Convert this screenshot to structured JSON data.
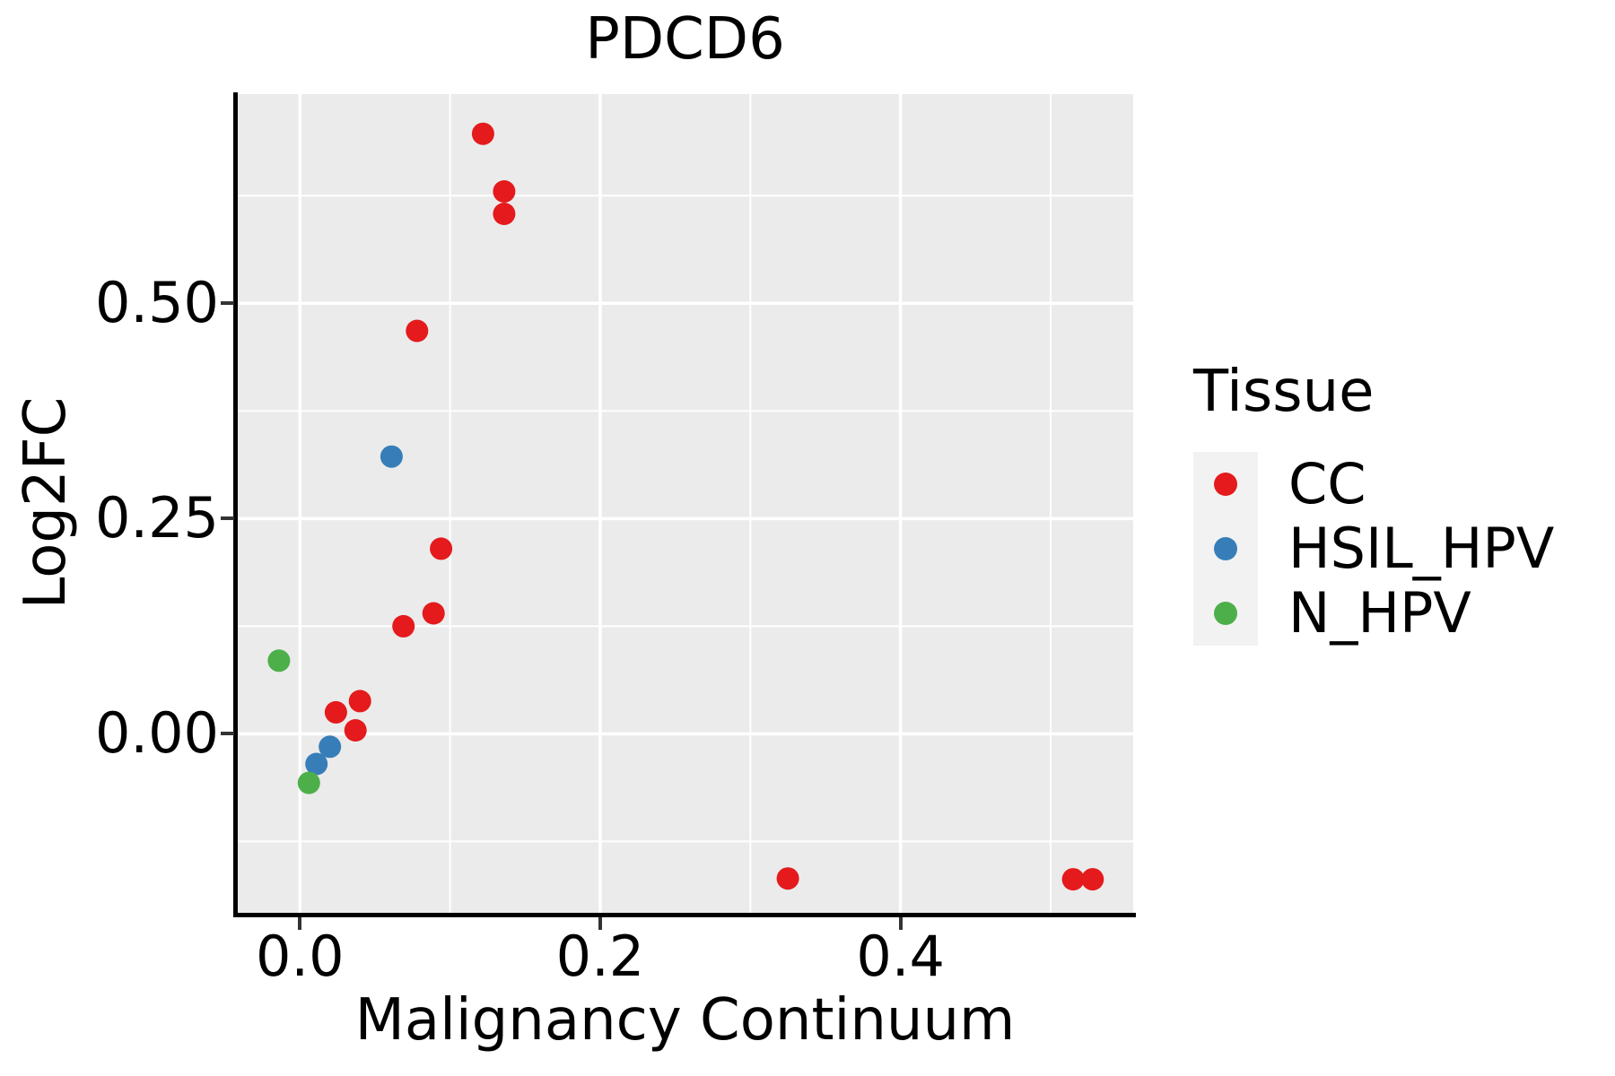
{
  "title": "PDCD6",
  "axes": {
    "x": {
      "label": "Malignancy Continuum",
      "tick_labels": [
        "0.0",
        "0.2",
        "0.4"
      ]
    },
    "y": {
      "label": "Log2FC",
      "tick_labels": [
        "0.00",
        "0.25",
        "0.50"
      ]
    }
  },
  "legend": {
    "title": "Tissue",
    "items": [
      {
        "label": "CC",
        "color": "#E41A1C"
      },
      {
        "label": "HSIL_HPV",
        "color": "#377EB8"
      },
      {
        "label": "N_HPV",
        "color": "#4DAF4A"
      }
    ]
  },
  "chart_data": {
    "type": "scatter",
    "title": "PDCD6",
    "xlabel": "Malignancy Continuum",
    "ylabel": "Log2FC",
    "xlim": [
      -0.042,
      0.555
    ],
    "ylim": [
      -0.21,
      0.743
    ],
    "x_ticks": [
      0.0,
      0.2,
      0.4
    ],
    "y_ticks": [
      0.0,
      0.25,
      0.5
    ],
    "x_tick_labels": [
      "0.0",
      "0.2",
      "0.4"
    ],
    "y_tick_labels": [
      "0.00",
      "0.25",
      "0.50"
    ],
    "x_minor_gridlines": [
      0.1,
      0.3,
      0.5
    ],
    "y_minor_gridlines": [
      -0.125,
      0.125,
      0.375,
      0.625
    ],
    "grid": true,
    "legend_title": "Tissue",
    "legend_position": "right",
    "point_radius_px": 12.5,
    "series": [
      {
        "name": "CC",
        "color": "#E41A1C",
        "points": [
          [
            0.122,
            0.697
          ],
          [
            0.136,
            0.63
          ],
          [
            0.136,
            0.604
          ],
          [
            0.078,
            0.468
          ],
          [
            0.094,
            0.215
          ],
          [
            0.089,
            0.14
          ],
          [
            0.069,
            0.125
          ],
          [
            0.04,
            0.038
          ],
          [
            0.024,
            0.025
          ],
          [
            0.037,
            0.004
          ],
          [
            0.325,
            -0.168
          ],
          [
            0.515,
            -0.169
          ],
          [
            0.528,
            -0.169
          ]
        ]
      },
      {
        "name": "HSIL_HPV",
        "color": "#377EB8",
        "points": [
          [
            0.061,
            0.322
          ],
          [
            0.02,
            -0.015
          ],
          [
            0.011,
            -0.035
          ]
        ]
      },
      {
        "name": "N_HPV",
        "color": "#4DAF4A",
        "points": [
          [
            -0.014,
            0.085
          ],
          [
            0.006,
            -0.057
          ]
        ]
      }
    ]
  }
}
